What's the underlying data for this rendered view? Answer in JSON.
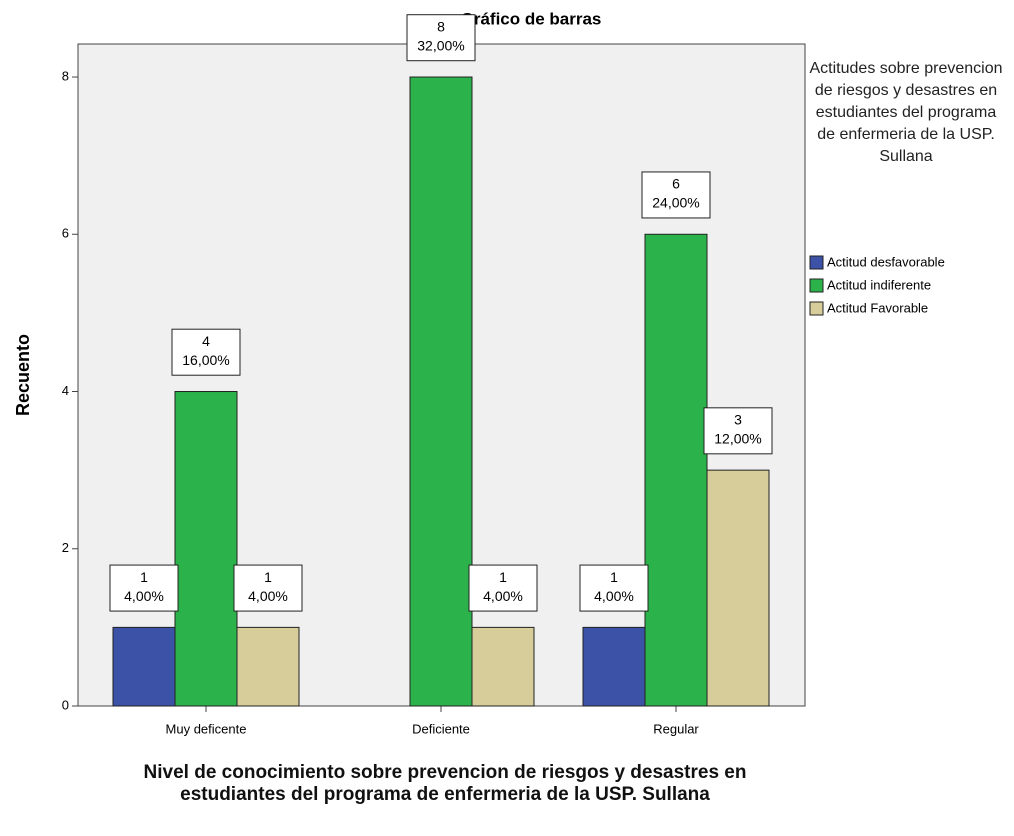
{
  "chart_data": {
    "type": "bar",
    "title": "Gráfico de barras",
    "y_label": "Recuento",
    "x_label": "Nivel de conocimiento  sobre prevencion de riesgos y desastres en estudiantes del programa de enfermeria de la USP. Sullana",
    "legend_title": "Actitudes  sobre prevencion de riesgos y desastres en estudiantes del programa de enfermeria de la USP. Sullana",
    "categories": [
      "Muy deficente",
      "Deficiente",
      "Regular"
    ],
    "series": [
      {
        "name": "Actitud desfavorable",
        "color": "#3b52a6",
        "values": [
          1,
          0,
          1
        ],
        "value_labels": [
          [
            "1",
            "4,00%"
          ],
          null,
          [
            "1",
            "4,00%"
          ]
        ]
      },
      {
        "name": "Actitud indiferente",
        "color": "#2bb24a",
        "values": [
          4,
          8,
          6
        ],
        "value_labels": [
          [
            "4",
            "16,00%"
          ],
          [
            "8",
            "32,00%"
          ],
          [
            "6",
            "24,00%"
          ]
        ]
      },
      {
        "name": "Actitud Favorable",
        "color": "#d6cd9b",
        "values": [
          1,
          1,
          3
        ],
        "value_labels": [
          [
            "1",
            "4,00%"
          ],
          [
            "1",
            "4,00%"
          ],
          [
            "3",
            "12,00%"
          ]
        ]
      }
    ],
    "ylim": [
      0,
      8.42
    ],
    "yticks": [
      0,
      2,
      4,
      6,
      8
    ],
    "legend": "right"
  }
}
